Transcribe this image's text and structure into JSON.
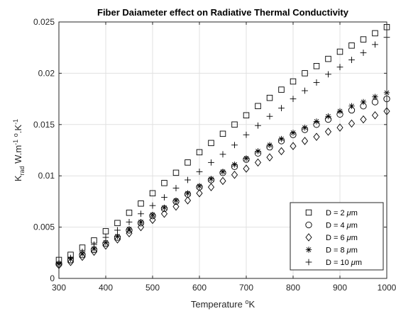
{
  "chart_data": {
    "type": "scatter",
    "title": "Fiber Daiameter effect on Radiative Thermal Conductivity",
    "xlabel": {
      "main": "Temperature ",
      "sup": "o",
      "tail": "K"
    },
    "ylabel": {
      "k": "K",
      "sub": "rad",
      "units1": " W.m",
      "sup1": "-1",
      "units2": " ",
      "sup2": "o",
      "units3": ".K",
      "sup3": "-1"
    },
    "xlim": [
      300,
      1000
    ],
    "ylim": [
      0,
      0.025
    ],
    "xticks": [
      300,
      400,
      500,
      600,
      700,
      800,
      900,
      1000
    ],
    "yticks": [
      0,
      0.005,
      0.01,
      0.015,
      0.02,
      0.025
    ],
    "xtick_labels": [
      "300",
      "400",
      "500",
      "600",
      "700",
      "800",
      "900",
      "1000"
    ],
    "ytick_labels": [
      "0",
      "0.005",
      "0.01",
      "0.015",
      "0.02",
      "0.025"
    ],
    "grid": true,
    "legend_position": "lower-right",
    "x": [
      300,
      325,
      350,
      375,
      400,
      425,
      450,
      475,
      500,
      525,
      550,
      575,
      600,
      625,
      650,
      675,
      700,
      725,
      750,
      775,
      800,
      825,
      850,
      875,
      900,
      925,
      950,
      975,
      1000
    ],
    "series": [
      {
        "name": "D = 2 μm",
        "legend": {
          "prefix": "D = 2 ",
          "mu": "μ",
          "suffix": "m"
        },
        "marker": "square",
        "values": [
          0.0018,
          0.0023,
          0.003,
          0.0037,
          0.0046,
          0.0054,
          0.0064,
          0.0073,
          0.0083,
          0.0093,
          0.0103,
          0.0113,
          0.0123,
          0.0132,
          0.0141,
          0.015,
          0.0159,
          0.0168,
          0.0176,
          0.0184,
          0.0192,
          0.02,
          0.0207,
          0.0214,
          0.0221,
          0.0227,
          0.0233,
          0.0239,
          0.0245
        ]
      },
      {
        "name": "D = 4 μm",
        "legend": {
          "prefix": "D = 4 ",
          "mu": "μ",
          "suffix": "m"
        },
        "marker": "circle",
        "values": [
          0.0014,
          0.0018,
          0.0023,
          0.0028,
          0.0034,
          0.004,
          0.0047,
          0.0054,
          0.0061,
          0.0068,
          0.0075,
          0.0082,
          0.0089,
          0.0096,
          0.0103,
          0.0109,
          0.0116,
          0.0122,
          0.0128,
          0.0134,
          0.014,
          0.0145,
          0.015,
          0.0155,
          0.016,
          0.0164,
          0.0168,
          0.0172,
          0.0175
        ]
      },
      {
        "name": "D = 6 μm",
        "legend": {
          "prefix": "D = 6 ",
          "mu": "μ",
          "suffix": "m"
        },
        "marker": "diamond",
        "values": [
          0.0013,
          0.0016,
          0.0021,
          0.0026,
          0.0032,
          0.0038,
          0.0044,
          0.005,
          0.0057,
          0.0063,
          0.007,
          0.0076,
          0.0083,
          0.0089,
          0.0095,
          0.0101,
          0.0107,
          0.0113,
          0.0118,
          0.0124,
          0.0129,
          0.0134,
          0.0138,
          0.0143,
          0.0147,
          0.0151,
          0.0155,
          0.0159,
          0.0163
        ]
      },
      {
        "name": "D = 8 μm",
        "legend": {
          "prefix": "D = 8 ",
          "mu": "μ",
          "suffix": "m"
        },
        "marker": "asterisk",
        "values": [
          0.0014,
          0.0019,
          0.0024,
          0.0029,
          0.0035,
          0.0041,
          0.0048,
          0.0055,
          0.0062,
          0.0069,
          0.0076,
          0.0083,
          0.009,
          0.0097,
          0.0104,
          0.0111,
          0.0117,
          0.0124,
          0.013,
          0.0136,
          0.0142,
          0.0147,
          0.0153,
          0.0158,
          0.0163,
          0.0168,
          0.0172,
          0.0177,
          0.0181
        ]
      },
      {
        "name": "D = 10 μm",
        "legend": {
          "prefix": "D = 10 ",
          "mu": "μ",
          "suffix": "m"
        },
        "marker": "plus",
        "values": [
          0.0015,
          0.002,
          0.0026,
          0.0033,
          0.004,
          0.0047,
          0.0055,
          0.0063,
          0.0071,
          0.0079,
          0.0088,
          0.0096,
          0.0104,
          0.0113,
          0.0121,
          0.013,
          0.014,
          0.0149,
          0.0158,
          0.0166,
          0.0175,
          0.0183,
          0.0191,
          0.0199,
          0.0206,
          0.0213,
          0.022,
          0.0228,
          0.0235
        ]
      }
    ]
  }
}
